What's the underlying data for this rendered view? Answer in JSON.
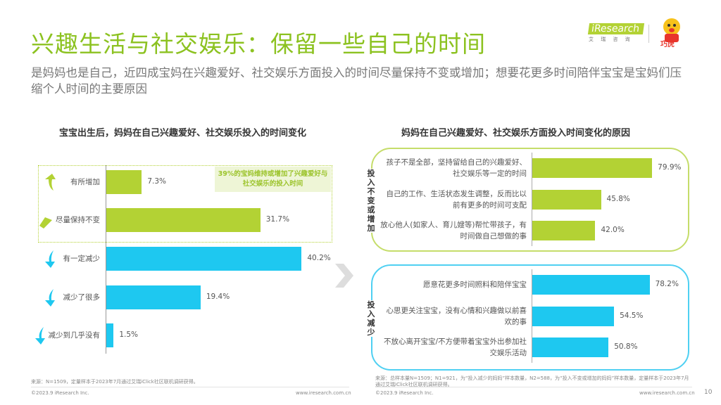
{
  "header": {
    "title": "兴趣生活与社交娱乐：保留一些自己的时间",
    "subtitle": "是妈妈也是自己，近四成宝妈在兴趣爱好、社交娱乐方面投入的时间尽量保持不变或增加；想要花更多时间陪伴宝宝是宝妈们压缩个人时间的主要原因",
    "logo_text": "iResearch",
    "logo_sub": "艾 瑞 咨 询",
    "mascot_text": "巧虎"
  },
  "colors": {
    "green": "#b3d234",
    "blue": "#1ec8f0",
    "title_green": "#8cc220"
  },
  "chart_data": [
    {
      "type": "bar",
      "orientation": "horizontal",
      "title": "宝宝出生后，妈妈在自己兴趣爱好、社交娱乐投入的时间变化",
      "categories": [
        "有所增加",
        "尽量保持不变",
        "有一定减少",
        "减少了很多",
        "减少到几乎没有"
      ],
      "values": [
        7.3,
        31.7,
        40.2,
        19.4,
        1.5
      ],
      "data_labels": [
        "7.3%",
        "31.7%",
        "40.2%",
        "19.4%",
        "1.5%"
      ],
      "colors": [
        "green",
        "green",
        "blue",
        "blue",
        "blue"
      ],
      "icons": [
        "arrow-up-icon",
        "arrow-right-icon",
        "arrow-down-icon",
        "arrow-down-icon",
        "arrow-down-icon"
      ],
      "annotation": "39%的宝妈维持或增加了兴趣爱好与社交娱乐的投入时间"
    },
    {
      "type": "bar",
      "orientation": "horizontal",
      "title": "妈妈在自己兴趣爱好、社交娱乐方面投入时间变化的原因",
      "groups": [
        {
          "name": "投入不变或增加",
          "color": "green",
          "categories": [
            "孩子不是全部，坚持留给自己的兴趣爱好、社交娱乐等一定的时间",
            "自己的工作、生活状态发生调整，反而比以前有更多的时间可支配",
            "放心他人(如家人、育儿嫂等)帮忙带孩子，有时间做自己想做的事"
          ],
          "values": [
            79.9,
            45.8,
            42.0
          ],
          "data_labels": [
            "79.9%",
            "45.8%",
            "42.0%"
          ]
        },
        {
          "name": "投入减少",
          "color": "blue",
          "categories": [
            "愿意花更多时间照料和陪伴宝宝",
            "心思更关注宝宝，没有心情和兴趣做以前喜欢的事",
            "不放心离开宝宝/不方便带着宝宝外出参加社交娱乐活动"
          ],
          "values": [
            78.2,
            54.5,
            50.8
          ],
          "data_labels": [
            "78.2%",
            "54.5%",
            "50.8%"
          ]
        }
      ]
    }
  ],
  "footer": {
    "left_source": "来源：N=1509，定量样本于2023年7月通过艾瑞iClick社区联机调研获得。",
    "right_source": "来源：总样本量N=1509；N1=921，为“投入减少的妈妈”样本数量，N2=588，为“投入不变或增加的妈妈”样本数量，定量样本于2023年7月通过艾瑞iClick社区联机调研获得。",
    "copyright_left": "©2023.9 iResearch Inc.",
    "url_left": "www.iresearch.com.cn",
    "copyright_right": "©2023.9 iResearch Inc.",
    "url_right": "www.iresearch.com.cn",
    "page": "10"
  }
}
